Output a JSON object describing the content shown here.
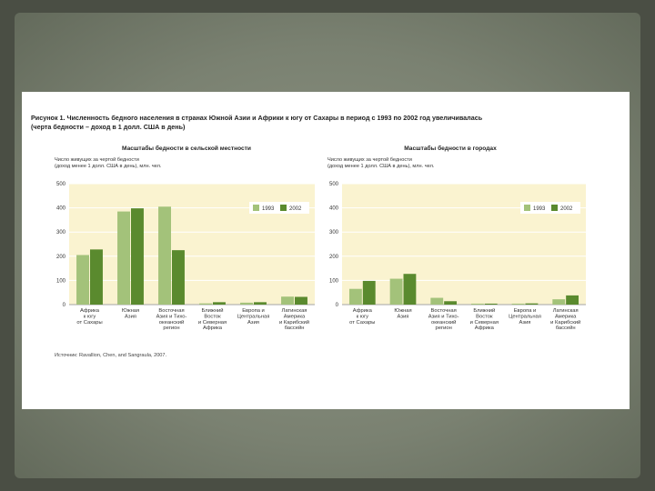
{
  "figure": {
    "title_line1": "Рисунок 1.   Численность бедного населения в странах Южной Азии и Африки к югу от Сахары в период с 1993 по 2002 год увеличивалась",
    "title_line2": "(черта бедности – доход в 1 долл. США в день)",
    "source": "Источник: Ravallion, Chen, and Sangraula, 2007."
  },
  "colors": {
    "series_1993": "#a3c27a",
    "series_2002": "#5a8a2e",
    "plot_bg": "#faf3d0",
    "grid": "#ffffff"
  },
  "chart_data": [
    {
      "type": "bar",
      "title": "Масштабы бедности в сельской местности",
      "ylabel_line1": "Число живущих за чертой бедности",
      "ylabel_line2": "(доход менее 1 долл. США в день), млн. чел.",
      "ylim": [
        0,
        500
      ],
      "yticks": [
        "500",
        "400",
        "300",
        "200",
        "100",
        "0"
      ],
      "legend_position": "top-right",
      "categories": [
        [
          "Африка",
          "к югу",
          "от Сахары"
        ],
        [
          "Южная",
          "Азия"
        ],
        [
          "Восточная",
          "Азия и Тихо-",
          "океанский",
          "регион"
        ],
        [
          "Ближний",
          "Восток",
          "и Северная",
          "Африка"
        ],
        [
          "Европа и",
          "Центральная",
          "Азия"
        ],
        [
          "Латинская",
          "Америка",
          "и Карибский",
          "бассейн"
        ]
      ],
      "series": [
        {
          "name": "1993",
          "values": [
            205,
            385,
            405,
            5,
            8,
            33
          ]
        },
        {
          "name": "2002",
          "values": [
            228,
            398,
            225,
            10,
            10,
            32
          ]
        }
      ]
    },
    {
      "type": "bar",
      "title": "Масштабы бедности в городах",
      "ylabel_line1": "Число живущих за чертой бедности",
      "ylabel_line2": "(доход менее 1 долл. США в день), млн. чел.",
      "ylim": [
        0,
        500
      ],
      "yticks": [
        "500",
        "400",
        "300",
        "200",
        "100",
        "0"
      ],
      "legend_position": "top-right",
      "categories": [
        [
          "Африка",
          "к югу",
          "от Сахары"
        ],
        [
          "Южная",
          "Азия"
        ],
        [
          "Восточная",
          "Азия и Тихо-",
          "океанский",
          "регион"
        ],
        [
          "Ближний",
          "Восток",
          "и Северная",
          "Африка"
        ],
        [
          "Европа и",
          "Центральная",
          "Азия"
        ],
        [
          "Латинская",
          "Америка",
          "и Карибский",
          "бассейн"
        ]
      ],
      "series": [
        {
          "name": "1993",
          "values": [
            65,
            107,
            28,
            4,
            4,
            22
          ]
        },
        {
          "name": "2002",
          "values": [
            98,
            127,
            14,
            4,
            5,
            38
          ]
        }
      ]
    }
  ]
}
